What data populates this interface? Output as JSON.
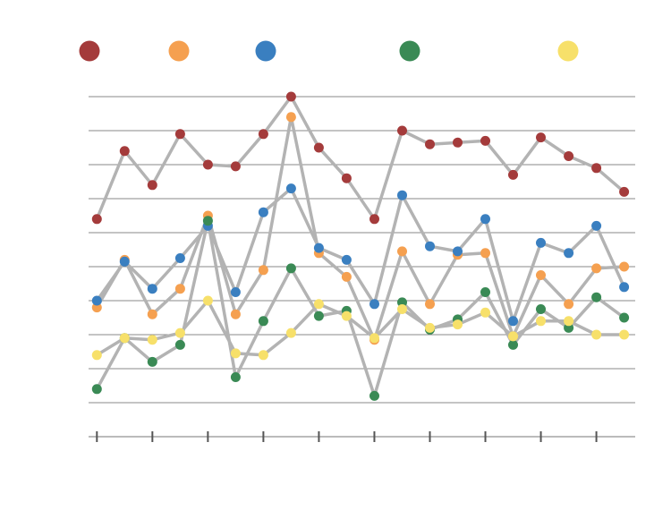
{
  "chart_data": {
    "type": "line",
    "title": "",
    "xlabel": "",
    "ylabel": "",
    "grid": true,
    "legend": "top",
    "x": [
      0,
      1,
      2,
      3,
      4,
      5,
      6,
      7,
      8,
      9,
      10,
      11,
      12,
      13,
      14,
      15,
      16,
      17,
      18,
      19
    ],
    "xlim": [
      -0.3,
      19.4
    ],
    "ylim": [
      0,
      10
    ],
    "series": [
      {
        "color": "#a43b3b",
        "values": [
          6.4,
          8.4,
          7.4,
          8.9,
          8.0,
          7.95,
          8.9,
          10.0,
          8.5,
          7.6,
          6.4,
          9.0,
          8.6,
          8.65,
          8.7,
          7.7,
          8.8,
          8.25,
          7.9,
          7.2
        ]
      },
      {
        "color": "#f5a050",
        "values": [
          3.8,
          5.2,
          3.6,
          4.35,
          6.5,
          3.6,
          4.9,
          9.4,
          5.4,
          4.7,
          2.85,
          5.45,
          3.9,
          5.35,
          5.4,
          2.95,
          4.75,
          3.9,
          4.95,
          5.0
        ]
      },
      {
        "color": "#3a7fc0",
        "values": [
          4.0,
          5.15,
          4.35,
          5.25,
          6.2,
          4.25,
          6.6,
          7.3,
          5.55,
          5.2,
          3.9,
          7.1,
          5.6,
          5.45,
          6.4,
          3.4,
          5.7,
          5.4,
          6.2,
          4.4
        ]
      },
      {
        "color": "#3a8a55",
        "values": [
          1.4,
          2.9,
          2.2,
          2.7,
          6.35,
          1.75,
          3.4,
          4.95,
          3.55,
          3.7,
          1.2,
          3.95,
          3.15,
          3.45,
          4.25,
          2.7,
          3.75,
          3.2,
          4.1,
          3.5
        ]
      },
      {
        "color": "#f7e06a",
        "values": [
          2.4,
          2.9,
          2.85,
          3.05,
          4.0,
          2.45,
          2.4,
          3.05,
          3.9,
          3.55,
          2.9,
          3.75,
          3.2,
          3.3,
          3.65,
          2.95,
          3.4,
          3.4,
          3.0,
          3.0
        ]
      }
    ],
    "legend_colors": [
      "#a43b3b",
      "#f5a050",
      "#3a7fc0",
      "#3a8a55",
      "#f7e06a"
    ]
  }
}
